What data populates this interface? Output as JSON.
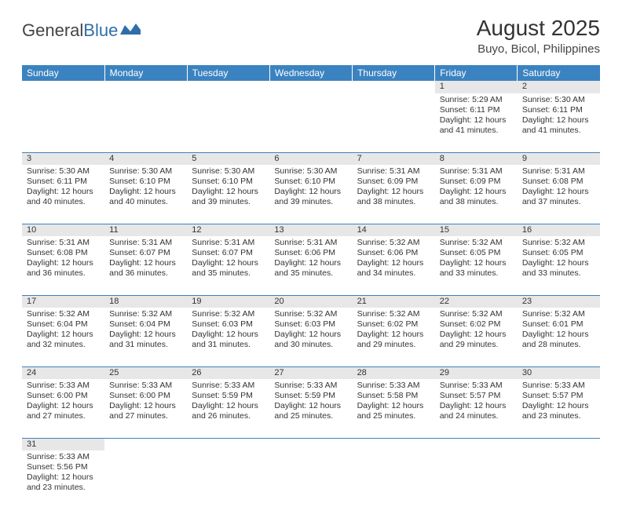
{
  "logo": {
    "text1": "General",
    "text2": "Blue"
  },
  "title": "August 2025",
  "location": "Buyo, Bicol, Philippines",
  "colors": {
    "header_bg": "#3b83c0",
    "header_fg": "#ffffff",
    "daynum_bg": "#e7e7e7",
    "border": "#3b83c0",
    "logo_blue": "#2f6fa8"
  },
  "weekdays": [
    "Sunday",
    "Monday",
    "Tuesday",
    "Wednesday",
    "Thursday",
    "Friday",
    "Saturday"
  ],
  "weeks": [
    [
      null,
      null,
      null,
      null,
      null,
      {
        "n": "1",
        "sr": "Sunrise: 5:29 AM",
        "ss": "Sunset: 6:11 PM",
        "d1": "Daylight: 12 hours",
        "d2": "and 41 minutes."
      },
      {
        "n": "2",
        "sr": "Sunrise: 5:30 AM",
        "ss": "Sunset: 6:11 PM",
        "d1": "Daylight: 12 hours",
        "d2": "and 41 minutes."
      }
    ],
    [
      {
        "n": "3",
        "sr": "Sunrise: 5:30 AM",
        "ss": "Sunset: 6:11 PM",
        "d1": "Daylight: 12 hours",
        "d2": "and 40 minutes."
      },
      {
        "n": "4",
        "sr": "Sunrise: 5:30 AM",
        "ss": "Sunset: 6:10 PM",
        "d1": "Daylight: 12 hours",
        "d2": "and 40 minutes."
      },
      {
        "n": "5",
        "sr": "Sunrise: 5:30 AM",
        "ss": "Sunset: 6:10 PM",
        "d1": "Daylight: 12 hours",
        "d2": "and 39 minutes."
      },
      {
        "n": "6",
        "sr": "Sunrise: 5:30 AM",
        "ss": "Sunset: 6:10 PM",
        "d1": "Daylight: 12 hours",
        "d2": "and 39 minutes."
      },
      {
        "n": "7",
        "sr": "Sunrise: 5:31 AM",
        "ss": "Sunset: 6:09 PM",
        "d1": "Daylight: 12 hours",
        "d2": "and 38 minutes."
      },
      {
        "n": "8",
        "sr": "Sunrise: 5:31 AM",
        "ss": "Sunset: 6:09 PM",
        "d1": "Daylight: 12 hours",
        "d2": "and 38 minutes."
      },
      {
        "n": "9",
        "sr": "Sunrise: 5:31 AM",
        "ss": "Sunset: 6:08 PM",
        "d1": "Daylight: 12 hours",
        "d2": "and 37 minutes."
      }
    ],
    [
      {
        "n": "10",
        "sr": "Sunrise: 5:31 AM",
        "ss": "Sunset: 6:08 PM",
        "d1": "Daylight: 12 hours",
        "d2": "and 36 minutes."
      },
      {
        "n": "11",
        "sr": "Sunrise: 5:31 AM",
        "ss": "Sunset: 6:07 PM",
        "d1": "Daylight: 12 hours",
        "d2": "and 36 minutes."
      },
      {
        "n": "12",
        "sr": "Sunrise: 5:31 AM",
        "ss": "Sunset: 6:07 PM",
        "d1": "Daylight: 12 hours",
        "d2": "and 35 minutes."
      },
      {
        "n": "13",
        "sr": "Sunrise: 5:31 AM",
        "ss": "Sunset: 6:06 PM",
        "d1": "Daylight: 12 hours",
        "d2": "and 35 minutes."
      },
      {
        "n": "14",
        "sr": "Sunrise: 5:32 AM",
        "ss": "Sunset: 6:06 PM",
        "d1": "Daylight: 12 hours",
        "d2": "and 34 minutes."
      },
      {
        "n": "15",
        "sr": "Sunrise: 5:32 AM",
        "ss": "Sunset: 6:05 PM",
        "d1": "Daylight: 12 hours",
        "d2": "and 33 minutes."
      },
      {
        "n": "16",
        "sr": "Sunrise: 5:32 AM",
        "ss": "Sunset: 6:05 PM",
        "d1": "Daylight: 12 hours",
        "d2": "and 33 minutes."
      }
    ],
    [
      {
        "n": "17",
        "sr": "Sunrise: 5:32 AM",
        "ss": "Sunset: 6:04 PM",
        "d1": "Daylight: 12 hours",
        "d2": "and 32 minutes."
      },
      {
        "n": "18",
        "sr": "Sunrise: 5:32 AM",
        "ss": "Sunset: 6:04 PM",
        "d1": "Daylight: 12 hours",
        "d2": "and 31 minutes."
      },
      {
        "n": "19",
        "sr": "Sunrise: 5:32 AM",
        "ss": "Sunset: 6:03 PM",
        "d1": "Daylight: 12 hours",
        "d2": "and 31 minutes."
      },
      {
        "n": "20",
        "sr": "Sunrise: 5:32 AM",
        "ss": "Sunset: 6:03 PM",
        "d1": "Daylight: 12 hours",
        "d2": "and 30 minutes."
      },
      {
        "n": "21",
        "sr": "Sunrise: 5:32 AM",
        "ss": "Sunset: 6:02 PM",
        "d1": "Daylight: 12 hours",
        "d2": "and 29 minutes."
      },
      {
        "n": "22",
        "sr": "Sunrise: 5:32 AM",
        "ss": "Sunset: 6:02 PM",
        "d1": "Daylight: 12 hours",
        "d2": "and 29 minutes."
      },
      {
        "n": "23",
        "sr": "Sunrise: 5:32 AM",
        "ss": "Sunset: 6:01 PM",
        "d1": "Daylight: 12 hours",
        "d2": "and 28 minutes."
      }
    ],
    [
      {
        "n": "24",
        "sr": "Sunrise: 5:33 AM",
        "ss": "Sunset: 6:00 PM",
        "d1": "Daylight: 12 hours",
        "d2": "and 27 minutes."
      },
      {
        "n": "25",
        "sr": "Sunrise: 5:33 AM",
        "ss": "Sunset: 6:00 PM",
        "d1": "Daylight: 12 hours",
        "d2": "and 27 minutes."
      },
      {
        "n": "26",
        "sr": "Sunrise: 5:33 AM",
        "ss": "Sunset: 5:59 PM",
        "d1": "Daylight: 12 hours",
        "d2": "and 26 minutes."
      },
      {
        "n": "27",
        "sr": "Sunrise: 5:33 AM",
        "ss": "Sunset: 5:59 PM",
        "d1": "Daylight: 12 hours",
        "d2": "and 25 minutes."
      },
      {
        "n": "28",
        "sr": "Sunrise: 5:33 AM",
        "ss": "Sunset: 5:58 PM",
        "d1": "Daylight: 12 hours",
        "d2": "and 25 minutes."
      },
      {
        "n": "29",
        "sr": "Sunrise: 5:33 AM",
        "ss": "Sunset: 5:57 PM",
        "d1": "Daylight: 12 hours",
        "d2": "and 24 minutes."
      },
      {
        "n": "30",
        "sr": "Sunrise: 5:33 AM",
        "ss": "Sunset: 5:57 PM",
        "d1": "Daylight: 12 hours",
        "d2": "and 23 minutes."
      }
    ],
    [
      {
        "n": "31",
        "sr": "Sunrise: 5:33 AM",
        "ss": "Sunset: 5:56 PM",
        "d1": "Daylight: 12 hours",
        "d2": "and 23 minutes."
      },
      null,
      null,
      null,
      null,
      null,
      null
    ]
  ]
}
